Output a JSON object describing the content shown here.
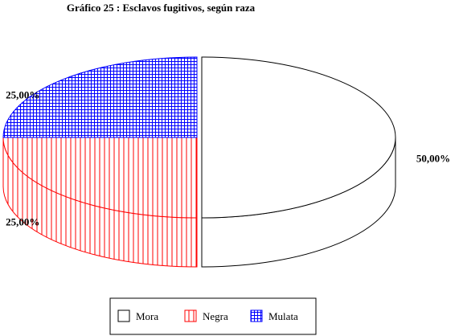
{
  "chart_data": {
    "type": "pie",
    "title": "Gráfico 25 : Esclavos fugitivos, según raza",
    "slices": [
      {
        "label": "Mora",
        "value": 50,
        "pct_label": "50,00%",
        "color": "#000000",
        "pattern": "none"
      },
      {
        "label": "Negra",
        "value": 25,
        "pct_label": "25,00%",
        "color": "#ff0000",
        "pattern": "vertical-lines"
      },
      {
        "label": "Mulata",
        "value": 25,
        "pct_label": "25,00%",
        "color": "#0000ff",
        "pattern": "grid"
      }
    ],
    "style": "3d",
    "legend": {
      "position": "bottom"
    }
  }
}
